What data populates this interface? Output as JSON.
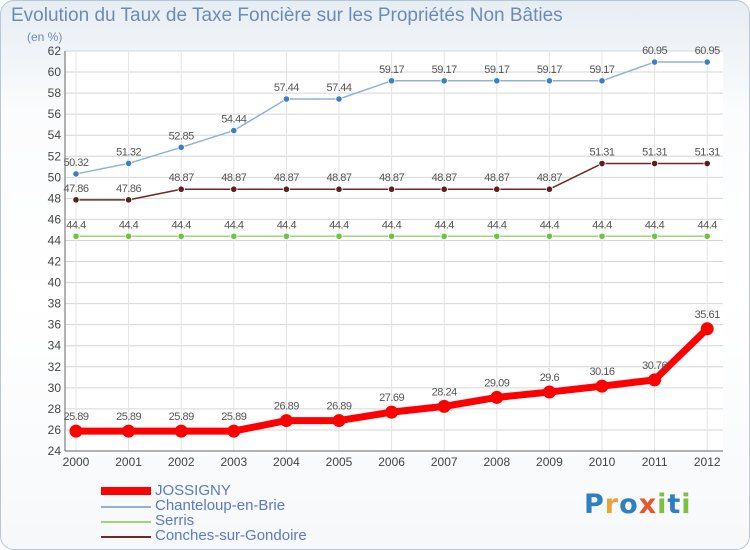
{
  "logo": {
    "text": "Proxiti"
  },
  "chart_data": {
    "type": "line",
    "title": "Evolution du Taux de Taxe Foncière sur les Propriétés Non Bâties",
    "subtitle": "(en %)",
    "categories": [
      "2000",
      "2001",
      "2002",
      "2003",
      "2004",
      "2005",
      "2006",
      "2007",
      "2008",
      "2009",
      "2010",
      "2011",
      "2012"
    ],
    "ylim": [
      24,
      62
    ],
    "yticks": [
      24,
      26,
      28,
      30,
      32,
      34,
      36,
      38,
      40,
      42,
      44,
      46,
      48,
      50,
      52,
      54,
      56,
      58,
      60,
      62
    ],
    "grid": true,
    "legend_position": "bottom-left",
    "series": [
      {
        "name": "JOSSIGNY",
        "color": "#ff0000",
        "values": [
          25.89,
          25.89,
          25.89,
          25.89,
          26.89,
          26.89,
          27.69,
          28.24,
          29.09,
          29.6,
          30.16,
          30.76,
          35.61
        ],
        "labels": [
          "25.89",
          "25.89",
          "25.89",
          "25.89",
          "26.89",
          "26.89",
          "27.69",
          "28.24",
          "29.09",
          "29.6",
          "30.16",
          "30.76",
          "35.61"
        ]
      },
      {
        "name": "Chanteloup-en-Brie",
        "color": "#8fb2d9",
        "values": [
          50.32,
          51.32,
          52.85,
          54.44,
          57.44,
          57.44,
          59.17,
          59.17,
          59.17,
          59.17,
          59.17,
          60.95,
          60.95
        ],
        "labels": [
          "50.32",
          "51.32",
          "52.85",
          "54.44",
          "57.44",
          "57.44",
          "59.17",
          "59.17",
          "59.17",
          "59.17",
          "59.17",
          "60.95",
          "60.95"
        ]
      },
      {
        "name": "Serris",
        "color": "#9fd67a",
        "values": [
          44.4,
          44.4,
          44.4,
          44.4,
          44.4,
          44.4,
          44.4,
          44.4,
          44.4,
          44.4,
          44.4,
          44.4,
          44.4
        ],
        "labels": [
          "44.4",
          "44.4",
          "44.4",
          "44.4",
          "44.4",
          "44.4",
          "44.4",
          "44.4",
          "44.4",
          "44.4",
          "44.4",
          "44.4",
          "44.4"
        ]
      },
      {
        "name": "Conches-sur-Gondoire",
        "color": "#6b2a2a",
        "values": [
          47.86,
          47.86,
          48.87,
          48.87,
          48.87,
          48.87,
          48.87,
          48.87,
          48.87,
          48.87,
          51.31,
          51.31,
          51.31
        ],
        "labels": [
          "47.86",
          "47.86",
          "48.87",
          "48.87",
          "48.87",
          "48.87",
          "48.87",
          "48.87",
          "48.87",
          "48.87",
          "51.31",
          "51.31",
          "51.31"
        ]
      }
    ]
  }
}
